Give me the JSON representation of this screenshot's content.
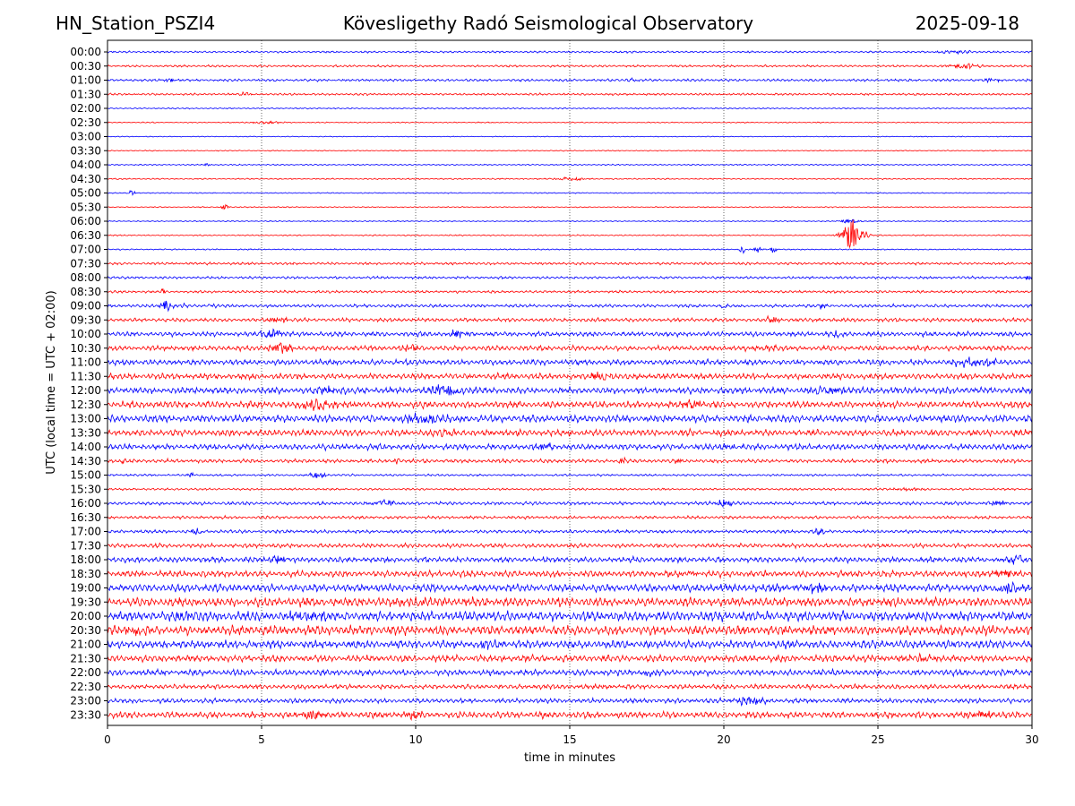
{
  "header": {
    "station": "HN_Station_PSZI4",
    "observatory": "Kövesligethy Radó Seismological Observatory",
    "date": "2025-09-18"
  },
  "chart_data": {
    "type": "line",
    "title": "Kövesligethy Radó Seismological Observatory",
    "xlabel": "time in minutes",
    "ylabel": "UTC (local time = UTC + 02:00)",
    "xlim": [
      0,
      30
    ],
    "xticks": [
      "0",
      "5",
      "10",
      "15",
      "20",
      "25",
      "30"
    ],
    "grid": "vertical dotted at every 5 minutes",
    "colors": {
      "even_rows": "#0000ff",
      "odd_rows": "#ff0000",
      "grid": "#000000"
    },
    "rows": [
      {
        "label": "00:00",
        "level": 0.9,
        "events": [
          [
            27.5,
            1.8,
            0.6
          ],
          [
            17.1,
            1.2,
            0.2
          ]
        ]
      },
      {
        "label": "00:30",
        "level": 1.0,
        "events": [
          [
            27.8,
            2.5,
            0.5
          ]
        ]
      },
      {
        "label": "01:00",
        "level": 1.2,
        "events": [
          [
            2.0,
            2.0,
            0.3
          ],
          [
            17.0,
            1.5,
            0.2
          ],
          [
            28.7,
            2.0,
            0.3
          ]
        ]
      },
      {
        "label": "01:30",
        "level": 1.0,
        "events": [
          [
            4.5,
            2.5,
            0.2
          ]
        ]
      },
      {
        "label": "02:00",
        "level": 0.6,
        "events": []
      },
      {
        "label": "02:30",
        "level": 0.5,
        "events": [
          [
            5.2,
            1.2,
            0.6
          ]
        ]
      },
      {
        "label": "03:00",
        "level": 0.4,
        "events": []
      },
      {
        "label": "03:30",
        "level": 0.5,
        "events": []
      },
      {
        "label": "04:00",
        "level": 0.6,
        "events": [
          [
            3.2,
            1.5,
            0.1
          ]
        ]
      },
      {
        "label": "04:30",
        "level": 0.6,
        "events": [
          [
            15.0,
            2.0,
            0.5
          ]
        ]
      },
      {
        "label": "05:00",
        "level": 0.5,
        "events": [
          [
            0.8,
            4.0,
            0.1
          ]
        ]
      },
      {
        "label": "05:30",
        "level": 0.5,
        "events": [
          [
            3.8,
            3.5,
            0.1
          ]
        ]
      },
      {
        "label": "06:00",
        "level": 0.5,
        "events": [
          [
            24.1,
            2.5,
            0.3
          ]
        ]
      },
      {
        "label": "06:30",
        "level": 0.6,
        "events": [
          [
            24.2,
            18.0,
            0.35
          ]
        ]
      },
      {
        "label": "07:00",
        "level": 0.6,
        "events": [
          [
            20.6,
            4.5,
            0.1
          ],
          [
            21.1,
            4.0,
            0.1
          ],
          [
            21.6,
            3.5,
            0.1
          ]
        ]
      },
      {
        "label": "07:30",
        "level": 1.2,
        "events": []
      },
      {
        "label": "08:00",
        "level": 1.2,
        "events": [
          [
            29.9,
            2.5,
            0.2
          ]
        ]
      },
      {
        "label": "08:30",
        "level": 1.2,
        "events": [
          [
            1.8,
            4.0,
            0.1
          ]
        ]
      },
      {
        "label": "09:00",
        "level": 1.5,
        "events": [
          [
            1.9,
            6.0,
            0.2
          ],
          [
            2.5,
            3.5,
            0.1
          ],
          [
            3.4,
            4.5,
            0.1
          ],
          [
            20.0,
            4.0,
            0.1
          ],
          [
            23.2,
            4.0,
            0.1
          ]
        ]
      },
      {
        "label": "09:30",
        "level": 1.8,
        "events": [
          [
            21.5,
            3.5,
            0.3
          ],
          [
            5.5,
            3.0,
            0.4
          ]
        ]
      },
      {
        "label": "10:00",
        "level": 2.2,
        "events": [
          [
            5.3,
            4.5,
            0.4
          ],
          [
            11.4,
            4.0,
            0.3
          ],
          [
            23.6,
            3.0,
            0.3
          ]
        ]
      },
      {
        "label": "10:30",
        "level": 2.4,
        "events": [
          [
            5.6,
            5.5,
            0.4
          ],
          [
            9.8,
            3.0,
            0.3
          ],
          [
            21.6,
            3.0,
            0.3
          ]
        ]
      },
      {
        "label": "11:00",
        "level": 2.6,
        "events": [
          [
            27.9,
            6.0,
            0.4
          ],
          [
            28.6,
            4.5,
            0.3
          ]
        ]
      },
      {
        "label": "11:30",
        "level": 2.8,
        "events": [
          [
            16.0,
            4.0,
            0.4
          ]
        ]
      },
      {
        "label": "12:00",
        "level": 3.0,
        "events": [
          [
            10.9,
            5.5,
            0.6
          ],
          [
            7.2,
            4.0,
            0.5
          ],
          [
            23.4,
            4.0,
            0.5
          ]
        ]
      },
      {
        "label": "12:30",
        "level": 3.2,
        "events": [
          [
            6.8,
            5.5,
            0.5
          ],
          [
            19.0,
            4.0,
            0.4
          ]
        ]
      },
      {
        "label": "13:00",
        "level": 3.4,
        "events": [
          [
            10.3,
            5.0,
            0.6
          ]
        ]
      },
      {
        "label": "13:30",
        "level": 3.0,
        "events": [
          [
            11.0,
            4.0,
            0.4
          ]
        ]
      },
      {
        "label": "14:00",
        "level": 2.8,
        "events": [
          [
            14.2,
            3.0,
            0.3
          ],
          [
            20.2,
            3.0,
            0.3
          ]
        ]
      },
      {
        "label": "14:30",
        "level": 1.8,
        "events": [
          [
            9.4,
            3.5,
            0.1
          ],
          [
            16.7,
            4.5,
            0.1
          ],
          [
            18.5,
            3.0,
            0.1
          ],
          [
            0.5,
            3.0,
            0.1
          ]
        ]
      },
      {
        "label": "15:00",
        "level": 1.0,
        "events": [
          [
            6.8,
            3.0,
            0.3
          ],
          [
            2.7,
            2.5,
            0.1
          ]
        ]
      },
      {
        "label": "15:30",
        "level": 1.0,
        "events": [
          [
            26.0,
            1.5,
            0.5
          ]
        ]
      },
      {
        "label": "16:00",
        "level": 1.6,
        "events": [
          [
            20.0,
            4.0,
            0.3
          ],
          [
            9.0,
            3.0,
            0.4
          ],
          [
            28.9,
            3.0,
            0.3
          ]
        ]
      },
      {
        "label": "16:30",
        "level": 1.4,
        "events": []
      },
      {
        "label": "17:00",
        "level": 1.6,
        "events": [
          [
            23.1,
            3.5,
            0.2
          ],
          [
            2.9,
            3.0,
            0.2
          ]
        ]
      },
      {
        "label": "17:30",
        "level": 2.0,
        "events": []
      },
      {
        "label": "18:00",
        "level": 2.6,
        "events": [
          [
            5.5,
            4.0,
            0.4
          ],
          [
            29.5,
            4.0,
            0.4
          ]
        ]
      },
      {
        "label": "18:30",
        "level": 3.0,
        "events": [
          [
            18.9,
            4.0,
            0.3
          ],
          [
            29.0,
            4.0,
            0.4
          ]
        ]
      },
      {
        "label": "19:00",
        "level": 3.6,
        "events": [
          [
            22.9,
            4.5,
            0.4
          ],
          [
            29.2,
            4.5,
            0.4
          ]
        ]
      },
      {
        "label": "19:30",
        "level": 4.2,
        "events": [
          [
            10.0,
            4.5,
            0.4
          ]
        ]
      },
      {
        "label": "20:00",
        "level": 4.6,
        "events": [
          [
            2.6,
            4.0,
            0.5
          ],
          [
            6.6,
            4.0,
            0.5
          ]
        ]
      },
      {
        "label": "20:30",
        "level": 4.4,
        "events": [
          [
            0.9,
            4.0,
            0.5
          ]
        ]
      },
      {
        "label": "21:00",
        "level": 3.8,
        "events": [
          [
            12.3,
            4.0,
            0.3
          ]
        ]
      },
      {
        "label": "21:30",
        "level": 3.2,
        "events": [
          [
            26.5,
            4.0,
            0.4
          ]
        ]
      },
      {
        "label": "22:00",
        "level": 2.8,
        "events": [
          [
            17.6,
            4.0,
            0.3
          ],
          [
            29.3,
            3.5,
            0.3
          ]
        ]
      },
      {
        "label": "22:30",
        "level": 2.2,
        "events": []
      },
      {
        "label": "23:00",
        "level": 2.2,
        "events": [
          [
            20.8,
            4.5,
            0.5
          ]
        ]
      },
      {
        "label": "23:30",
        "level": 3.0,
        "events": [
          [
            6.6,
            5.0,
            0.4
          ],
          [
            9.9,
            4.0,
            0.3
          ],
          [
            28.3,
            4.5,
            0.5
          ]
        ]
      }
    ]
  }
}
